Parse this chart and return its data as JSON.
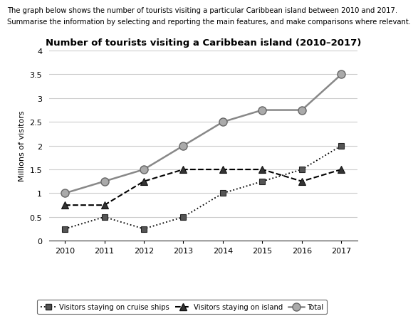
{
  "title": "Number of tourists visiting a Caribbean island (2010–2017)",
  "header_line1": "The graph below shows the number of tourists visiting a particular Caribbean island between 2010 and 2017.",
  "header_line2": "Summarise the information by selecting and reporting the main features, and make comparisons where relevant.",
  "years": [
    2010,
    2011,
    2012,
    2013,
    2014,
    2015,
    2016,
    2017
  ],
  "cruise_ships": [
    0.25,
    0.5,
    0.25,
    0.5,
    1.0,
    1.25,
    1.5,
    2.0
  ],
  "island": [
    0.75,
    0.75,
    1.25,
    1.5,
    1.5,
    1.5,
    1.25,
    1.5
  ],
  "total": [
    1.0,
    1.25,
    1.5,
    2.0,
    2.5,
    2.75,
    2.75,
    3.5
  ],
  "ylabel": "Millions of visitors",
  "ylim": [
    0,
    4
  ],
  "yticks": [
    0,
    0.5,
    1.0,
    1.5,
    2.0,
    2.5,
    3.0,
    3.5,
    4.0
  ],
  "ytick_labels": [
    "0",
    "0.5",
    "1",
    "1.5",
    "2",
    "2.5",
    "3",
    "3.5",
    "4"
  ],
  "color_cruise": "#000000",
  "color_island": "#000000",
  "color_total": "#888888",
  "marker_total_face": "#aaaaaa",
  "marker_total_edge": "#666666",
  "grid_color": "#cccccc",
  "legend_cruise": "Visitors staying on cruise ships",
  "legend_island": "Visitors staying on island",
  "legend_total": "Total"
}
